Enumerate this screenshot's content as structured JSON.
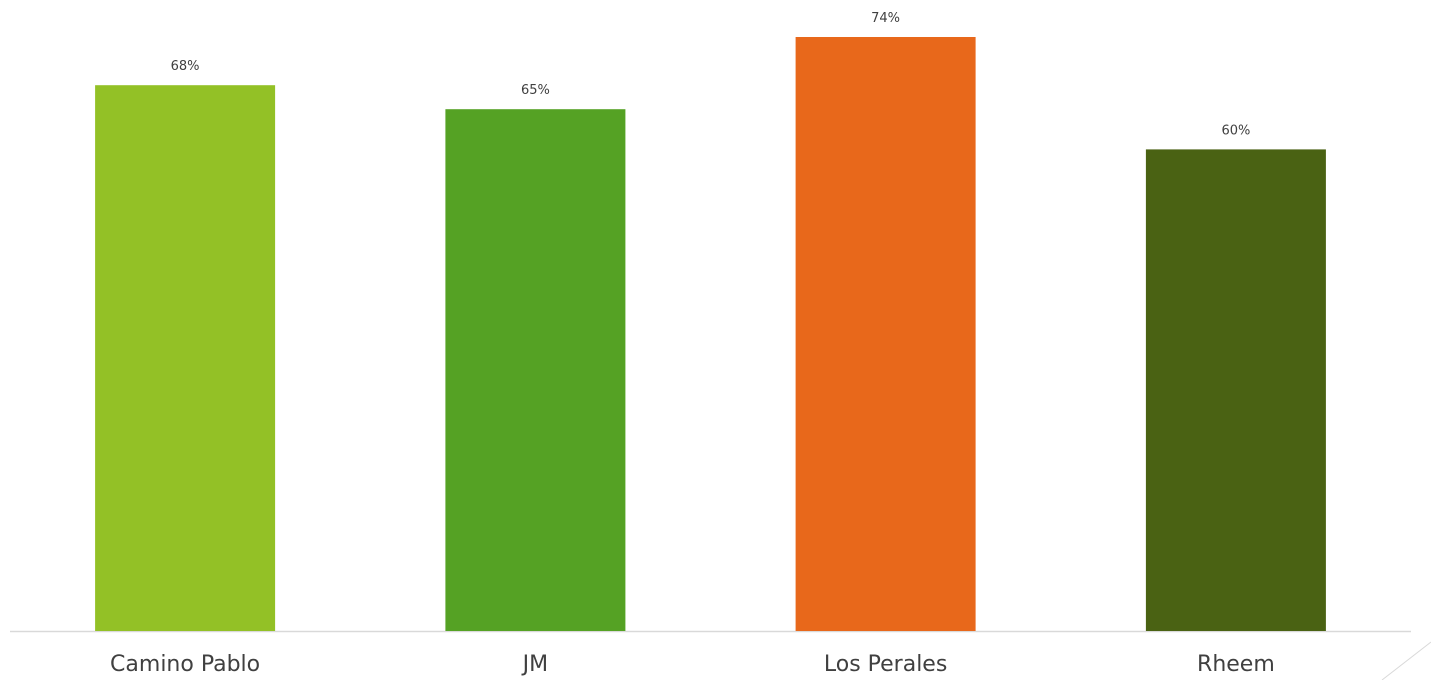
{
  "chart_data": {
    "type": "bar",
    "categories": [
      "Camino Pablo",
      "JM",
      "Los Perales",
      "Rheem"
    ],
    "values": [
      68,
      65,
      74,
      60
    ],
    "value_labels": [
      "68%",
      "65%",
      "74%",
      "60%"
    ],
    "colors": [
      "#93c126",
      "#55a224",
      "#e8681b",
      "#4a6213"
    ],
    "title": "",
    "xlabel": "",
    "ylabel": "",
    "ylim": [
      0,
      74
    ],
    "grid": false,
    "legend": "none",
    "axis_color": "#d9d9d9",
    "text_color": "#404040"
  }
}
